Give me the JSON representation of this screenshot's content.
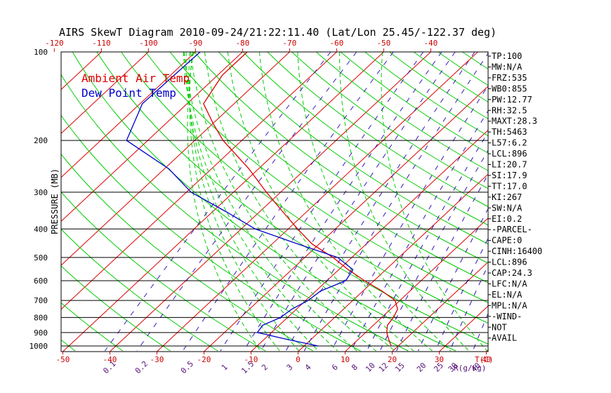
{
  "chart_data": {
    "type": "line",
    "title": "AIRS SkewT Diagram 2010-09-24/21:22:11.40 (Lat/Lon 25.45/-122.37 deg)",
    "ylabel": "PRESSURE (MB)",
    "x_top_unit": "",
    "x_bottom_unit": "T(C)",
    "mixing_ratio_unit": "R(g/kg)",
    "pressure_ticks": [
      100,
      200,
      300,
      400,
      500,
      600,
      700,
      800,
      900,
      1000
    ],
    "top_temperature_ticks": [
      -120,
      -110,
      -100,
      -90,
      -80,
      -70,
      -60,
      -50,
      -40
    ],
    "bottom_temperature_ticks": [
      -50,
      -40,
      -30,
      -20,
      -10,
      0,
      10,
      20,
      30,
      40
    ],
    "mixing_ratio_ticks": [
      "0.1",
      "0.2",
      "0.5",
      "1",
      "1.5",
      "2",
      "3",
      "4",
      "6",
      "8",
      "10",
      "12",
      "15",
      "20",
      "25",
      "30",
      "40"
    ],
    "series": [
      {
        "name": "Ambient Air Temp",
        "color": "#dd0000",
        "pressure": [
          100,
          120,
          150,
          175,
          200,
          250,
          300,
          350,
          400,
          450,
          500,
          550,
          600,
          650,
          700,
          750,
          800,
          850,
          900,
          950,
          1000
        ],
        "temperature": [
          -79,
          -79,
          -76.5,
          -70,
          -64,
          -52,
          -43,
          -35,
          -28,
          -21.5,
          -14,
          -8,
          -2,
          4,
          9,
          11.5,
          12.5,
          13,
          14.5,
          16.5,
          18.5
        ]
      },
      {
        "name": "Dew Point Temp",
        "color": "#0000cc",
        "pressure": [
          100,
          150,
          200,
          250,
          300,
          350,
          400,
          450,
          500,
          550,
          600,
          650,
          700,
          750,
          800,
          850,
          900,
          950,
          1000
        ],
        "temperature": [
          -89,
          -89.5,
          -84.5,
          -69,
          -59,
          -47,
          -37,
          -24.5,
          -13,
          -7,
          -6,
          -9,
          -9.5,
          -11,
          -11.5,
          -13.5,
          -13,
          -5,
          3
        ]
      }
    ]
  },
  "indices": [
    "TP:100",
    "MW:N/A",
    "FRZ:535",
    "WB0:855",
    "PW:12.77",
    "RH:32.5",
    "MAXT:28.3",
    "TH:5463",
    "L57:6.2",
    "LCL:896",
    "LI:20.7",
    "SI:17.9",
    "TT:17.0",
    "KI:267",
    "SW:N/A",
    "EI:0.2",
    "-PARCEL-",
    "CAPE:0",
    "CINH:16400",
    "LCL:896",
    "CAP:24.3",
    "LFC:N/A",
    "EL:N/A",
    "MPL:N/A",
    "-WIND-",
    "NOT",
    "AVAIL"
  ],
  "colors": {
    "isotherm": "#dd0000",
    "dry_adiabat": "#00cc00",
    "moist_adiabat": "#00cc00",
    "mixing_ratio": "#3311bb",
    "temp_profile": "#dd0000",
    "dew_profile": "#0000cc",
    "frame": "#000000",
    "tick_bottom": "#cc0000",
    "tick_top": "#cc0000",
    "tick_mixing": "#551177"
  }
}
